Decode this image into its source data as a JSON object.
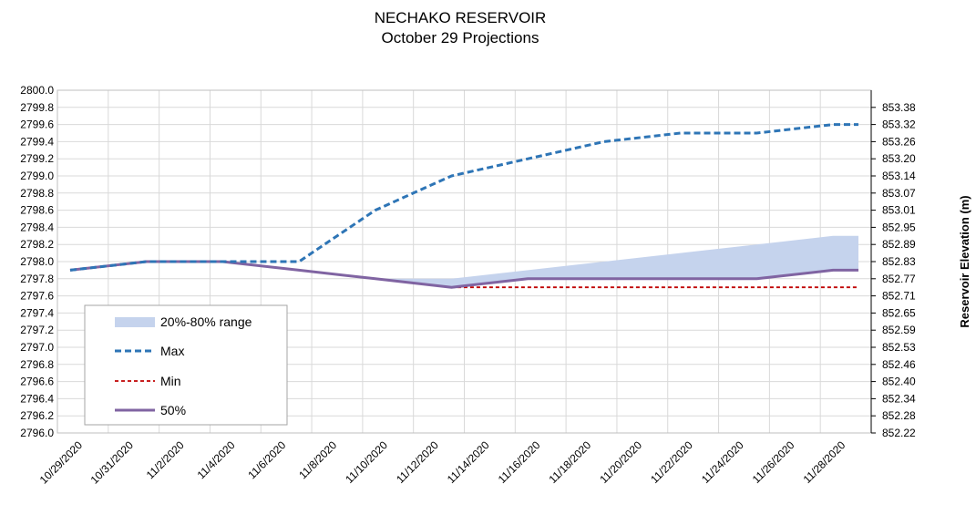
{
  "chart_data": {
    "type": "line",
    "title": "NECHAKO RESERVOIR",
    "subtitle": "October 29 Projections",
    "xlabel": "",
    "ylabel": "",
    "y2label": "Reservoir Elevation (m)",
    "ylim": [
      2796.0,
      2800.0
    ],
    "y_ticks": [
      "2796.0",
      "2796.2",
      "2796.4",
      "2796.6",
      "2796.8",
      "2797.0",
      "2797.2",
      "2797.4",
      "2797.6",
      "2797.8",
      "2798.0",
      "2798.2",
      "2798.4",
      "2798.6",
      "2798.8",
      "2799.0",
      "2799.2",
      "2799.4",
      "2799.6",
      "2799.8",
      "2800.0"
    ],
    "y2_ticks": [
      "852.22",
      "852.28",
      "852.34",
      "852.40",
      "852.46",
      "852.53",
      "852.59",
      "852.65",
      "852.71",
      "852.77",
      "852.83",
      "852.89",
      "852.95",
      "853.01",
      "853.07",
      "853.14",
      "853.20",
      "853.26",
      "853.32",
      "853.38"
    ],
    "x_tick_labels": [
      "10/29/2020",
      "10/31/2020",
      "11/2/2020",
      "11/4/2020",
      "11/6/2020",
      "11/8/2020",
      "11/10/2020",
      "11/12/2020",
      "11/14/2020",
      "11/16/2020",
      "11/18/2020",
      "11/20/2020",
      "11/22/2020",
      "11/24/2020",
      "11/26/2020",
      "11/28/2020"
    ],
    "x": [
      "10/29/2020",
      "11/1/2020",
      "11/4/2020",
      "11/7/2020",
      "11/10/2020",
      "11/13/2020",
      "11/16/2020",
      "11/19/2020",
      "11/22/2020",
      "11/25/2020",
      "11/28/2020",
      "11/29/2020"
    ],
    "series": [
      {
        "name": "20%-80% range",
        "kind": "band",
        "color": "#c5d3ed",
        "low": [
          2797.9,
          2798.0,
          2798.0,
          2797.9,
          2797.8,
          2797.7,
          2797.8,
          2797.8,
          2797.8,
          2797.8,
          2797.9,
          2797.9
        ],
        "high": [
          2797.9,
          2798.0,
          2798.0,
          2797.9,
          2797.8,
          2797.8,
          2797.9,
          2798.0,
          2798.1,
          2798.2,
          2798.3,
          2798.3
        ]
      },
      {
        "name": "Max",
        "kind": "line",
        "color": "#2e75b6",
        "dash": "7,4",
        "width": 3,
        "values": [
          2797.9,
          2798.0,
          2798.0,
          2798.0,
          2798.6,
          2799.0,
          2799.2,
          2799.4,
          2799.5,
          2799.5,
          2799.6,
          2799.6
        ]
      },
      {
        "name": "Min",
        "kind": "line",
        "color": "#c00000",
        "dash": "4,3",
        "width": 1.8,
        "values": [
          2797.9,
          2798.0,
          2798.0,
          2797.9,
          2797.8,
          2797.7,
          2797.7,
          2797.7,
          2797.7,
          2797.7,
          2797.7,
          2797.7
        ]
      },
      {
        "name": "50%",
        "kind": "line",
        "color": "#8064a2",
        "dash": "",
        "width": 3,
        "values": [
          2797.9,
          2798.0,
          2798.0,
          2797.9,
          2797.8,
          2797.7,
          2797.8,
          2797.8,
          2797.8,
          2797.8,
          2797.9,
          2797.9
        ]
      }
    ],
    "grid": true,
    "legend_position": "bottom-left"
  }
}
